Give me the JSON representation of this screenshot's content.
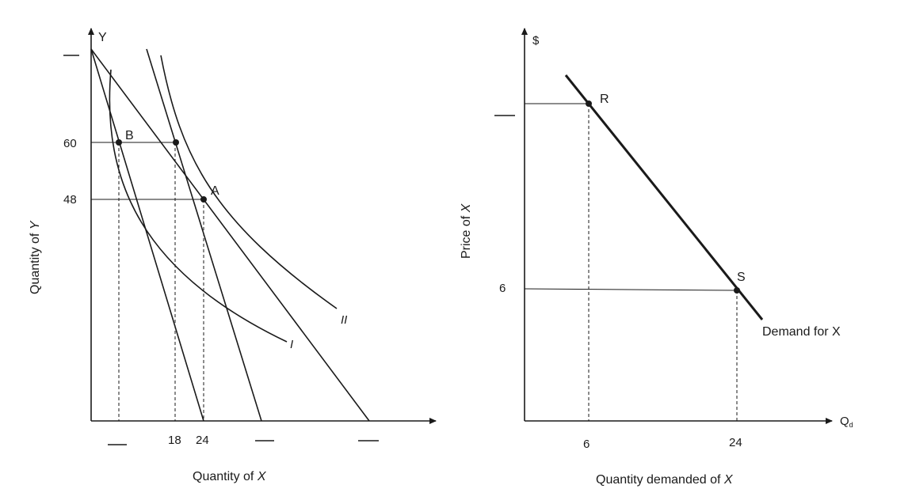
{
  "left": {
    "y_axis_letter": "Y",
    "y_label_main": "Quantity of ",
    "y_label_var": "Y",
    "x_label_main": "Quantity of ",
    "x_label_var": "X",
    "y_ticks": [
      "60",
      "48"
    ],
    "x_ticks": [
      "18",
      "24"
    ],
    "point_b": "B",
    "point_a": "A",
    "curve_i": "I",
    "curve_ii": "II"
  },
  "right": {
    "y_axis_symbol": "$",
    "y_label_main": "Price of ",
    "y_label_var": "X",
    "x_label_main": "Quantity demanded of ",
    "x_label_var": "X",
    "x_axis_main": "Q",
    "x_axis_sub": "d",
    "y_tick": "6",
    "x_ticks": [
      "6",
      "24"
    ],
    "point_r": "R",
    "point_s": "S",
    "demand_label": "Demand for X"
  }
}
